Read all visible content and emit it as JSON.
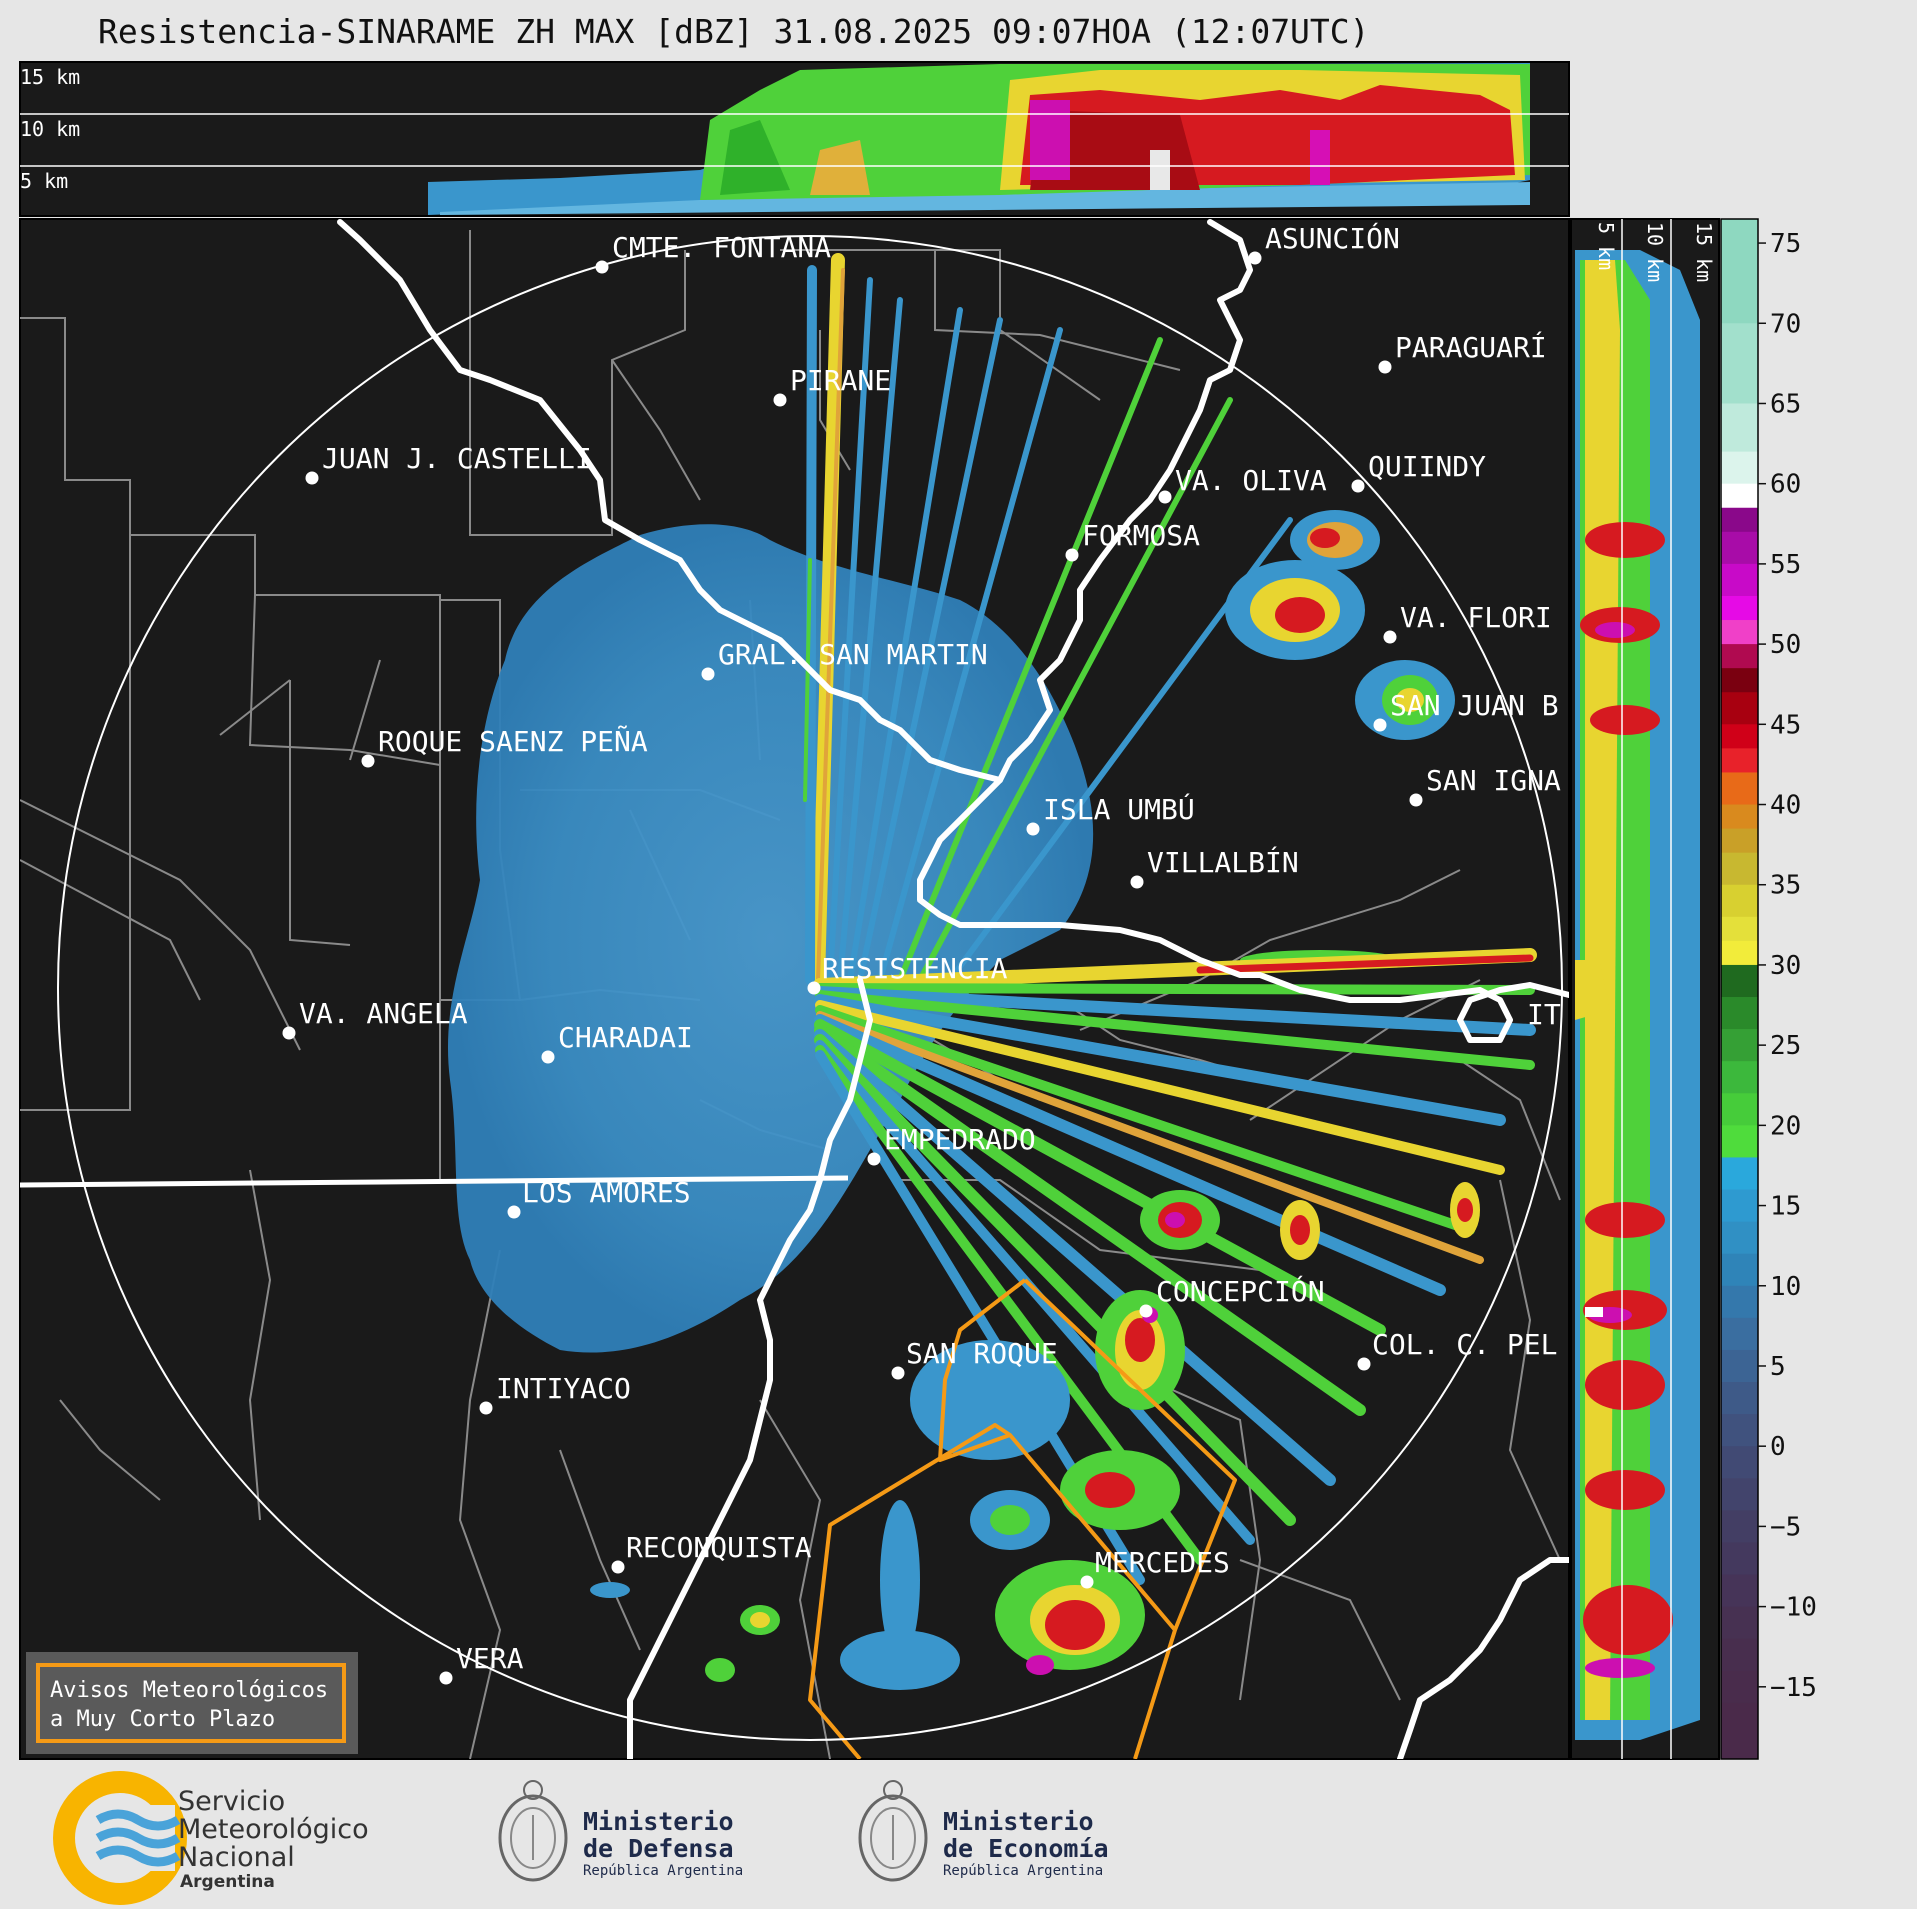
{
  "title": "Resistencia-SINARAME ZH MAX [dBZ] 31.08.2025 09:07HOA (12:07UTC)",
  "top_panel": {
    "height_labels": [
      "15 km",
      "10 km",
      "5 km"
    ]
  },
  "right_panel": {
    "height_labels": [
      "5 km",
      "10 km",
      "15 km"
    ]
  },
  "colorbar": {
    "ticks": [
      "75",
      "70",
      "65",
      "60",
      "55",
      "50",
      "45",
      "40",
      "35",
      "30",
      "25",
      "20",
      "15",
      "10",
      "5",
      "0",
      "−5",
      "−10",
      "−15"
    ]
  },
  "places": [
    {
      "name": "CMTE. FONTANA"
    },
    {
      "name": "ASUNCIÓN"
    },
    {
      "name": "PIRANE"
    },
    {
      "name": "PARAGUARÍ"
    },
    {
      "name": "JUAN J. CASTELLI"
    },
    {
      "name": "VA. OLIVA"
    },
    {
      "name": "QUIINDY"
    },
    {
      "name": "FORMOSA"
    },
    {
      "name": "VA. FLORI"
    },
    {
      "name": "GRAL. SAN MARTIN"
    },
    {
      "name": "SAN JUAN B"
    },
    {
      "name": "ROQUE SAENZ PEÑA"
    },
    {
      "name": "SAN IGNA"
    },
    {
      "name": "ISLA UMBÚ"
    },
    {
      "name": "VILLALBÍN"
    },
    {
      "name": "RESISTENCIA"
    },
    {
      "name": "VA. ANGELA"
    },
    {
      "name": "CHARADAI"
    },
    {
      "name": "IT"
    },
    {
      "name": "EMPEDRADO"
    },
    {
      "name": "LOS AMORES"
    },
    {
      "name": "CONCEPCIÓN"
    },
    {
      "name": "SAN ROQUE"
    },
    {
      "name": "COL. C. PEL"
    },
    {
      "name": "INTIYACO"
    },
    {
      "name": "RECONQUISTA"
    },
    {
      "name": "MERCEDES"
    },
    {
      "name": "VERA"
    }
  ],
  "alert_box": {
    "line1": "Avisos Meteorológicos",
    "line2": "a Muy Corto Plazo"
  },
  "logos": {
    "smn": {
      "line1": "Servicio",
      "line2": "Meteorológico",
      "line3": "Nacional",
      "line4": "Argentina"
    },
    "defensa": {
      "line1": "Ministerio",
      "line2": "de Defensa",
      "line3": "República Argentina"
    },
    "economia": {
      "line1": "Ministerio",
      "line2": "de Economía",
      "line3": "República Argentina"
    }
  },
  "colors": {
    "background": "#1a1a1a",
    "page": "#e6e6e6",
    "stratiform_echo": "#3b8fc2",
    "alert_polygon": "#f59a16",
    "river": "#ffffff",
    "boundary": "#8a8a8a"
  }
}
